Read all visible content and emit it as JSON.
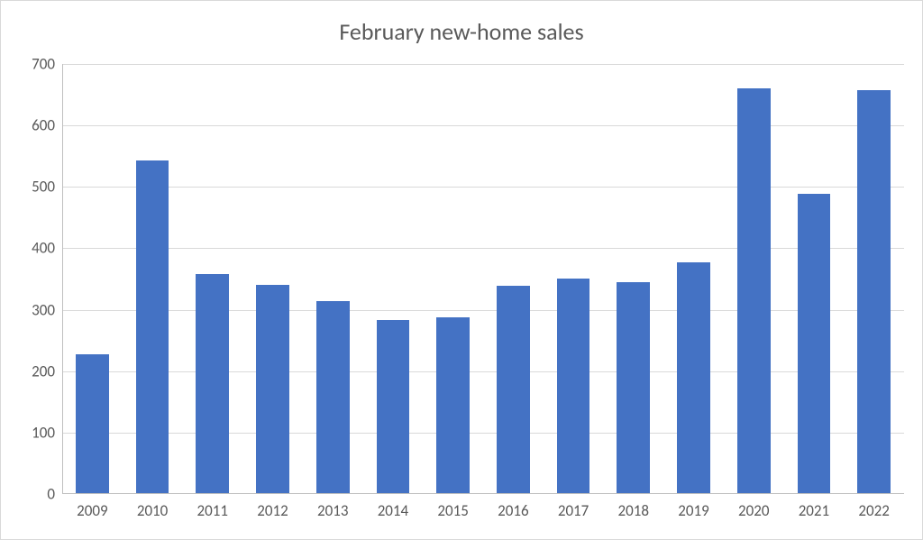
{
  "chart": {
    "type": "bar",
    "title": "February new-home sales",
    "title_fontsize": 26,
    "title_color": "#595959",
    "categories": [
      "2009",
      "2010",
      "2011",
      "2012",
      "2013",
      "2014",
      "2015",
      "2016",
      "2017",
      "2018",
      "2019",
      "2020",
      "2021",
      "2022"
    ],
    "values": [
      227,
      543,
      358,
      340,
      314,
      283,
      287,
      339,
      351,
      345,
      377,
      660,
      489,
      657
    ],
    "bar_color": "#4472c4",
    "bar_width": 0.55,
    "ylim": [
      0,
      700
    ],
    "ytick_step": 100,
    "yticks": [
      "0",
      "100",
      "200",
      "300",
      "400",
      "500",
      "600",
      "700"
    ],
    "grid_color": "#d9d9d9",
    "axis_line_color": "#bfbfbf",
    "border_color": "#d9d9d9",
    "background_color": "#ffffff",
    "tick_fontsize": 17,
    "tick_color": "#595959"
  }
}
